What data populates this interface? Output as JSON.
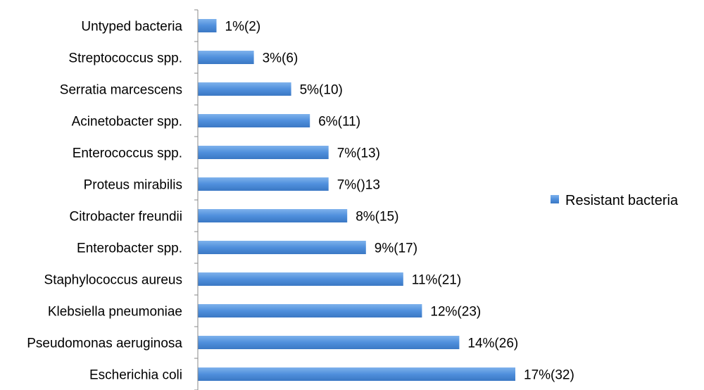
{
  "chart_data": {
    "type": "bar",
    "orientation": "horizontal",
    "categories": [
      "Untyped bacteria",
      "Streptococcus spp.",
      "Serratia marcescens",
      "Acinetobacter spp.",
      "Enterococcus spp.",
      "Proteus mirabilis",
      "Citrobacter freundii",
      "Enterobacter spp.",
      "Staphylococcus aureus",
      "Klebsiella pneumoniae",
      "Pseudomonas aeruginosa",
      "Escherichia coli"
    ],
    "series": [
      {
        "name": "Resistant bacteria",
        "values": [
          1,
          3,
          5,
          6,
          7,
          7,
          8,
          9,
          11,
          12,
          14,
          17
        ],
        "data_labels": [
          "1%(2)",
          "3%(6)",
          "5%(10)",
          "6%(11)",
          "7%(13)",
          "7%()13",
          "8%(15)",
          "9%(17)",
          "11%(21)",
          "12%(23)",
          "14%(26)",
          "17%(32)"
        ]
      }
    ],
    "xlim": [
      0,
      17
    ],
    "grid": false,
    "legend": "right",
    "colors": {
      "bar": "#4f8fdc",
      "bar_light": "#7fb2ec",
      "bar_dark": "#3b78c4",
      "axis": "#888888"
    }
  }
}
